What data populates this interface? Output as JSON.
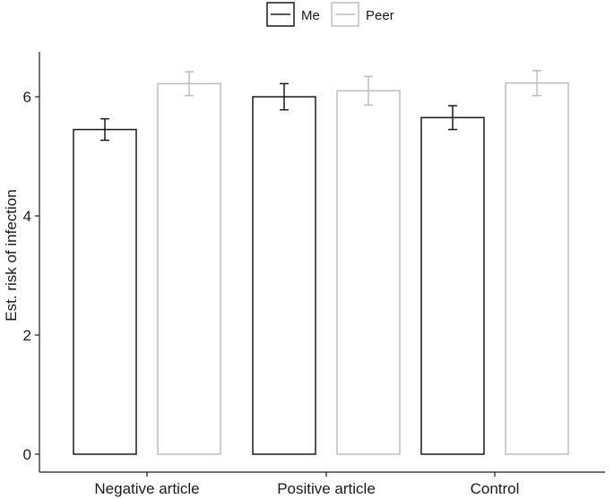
{
  "chart_data": {
    "type": "bar",
    "title": "",
    "xlabel": "",
    "ylabel": "Est. risk of infection",
    "categories": [
      "Negative article",
      "Positive article",
      "Control"
    ],
    "series": [
      {
        "name": "Me",
        "values": [
          5.45,
          6.0,
          5.65
        ],
        "errors": [
          0.18,
          0.22,
          0.2
        ],
        "color": "#1a1a1a"
      },
      {
        "name": "Peer",
        "values": [
          6.22,
          6.1,
          6.23
        ],
        "errors": [
          0.2,
          0.24,
          0.21
        ],
        "color": "#bdbdbd"
      }
    ],
    "ylim": [
      0,
      6.7
    ],
    "yticks": [
      0,
      2,
      4,
      6
    ],
    "grid": false,
    "legend_position": "top"
  }
}
